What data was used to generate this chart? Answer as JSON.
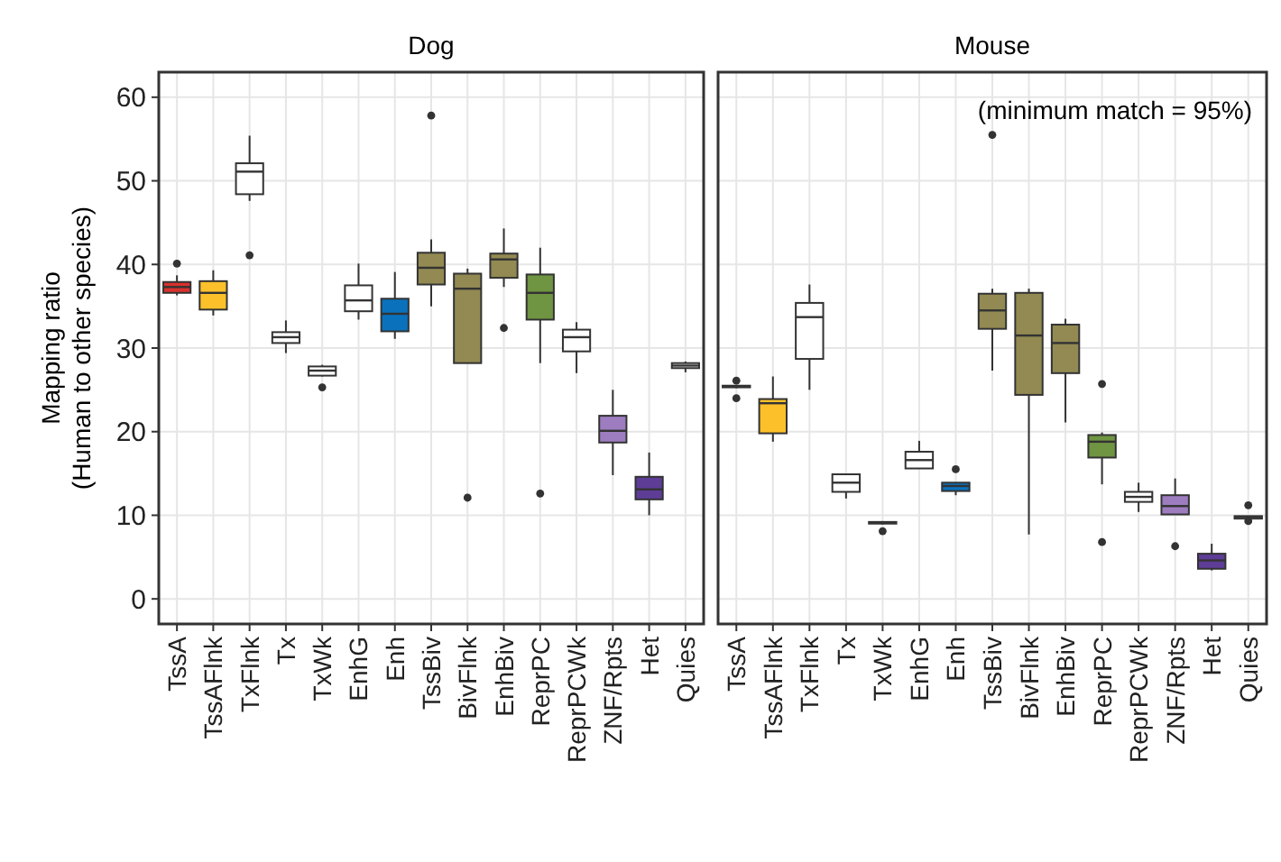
{
  "chart_data": [
    {
      "type": "box",
      "title": "Dog",
      "ylabel": "Mapping ratio\n(Human to other species)",
      "categories": [
        "TssA",
        "TssAFlnk",
        "TxFlnk",
        "Tx",
        "TxWk",
        "EnhG",
        "Enh",
        "TssBiv",
        "BivFlnk",
        "EnhBiv",
        "ReprPC",
        "ReprPCWk",
        "ZNF/Rpts",
        "Het",
        "Quies"
      ],
      "colors": [
        "#d7312d",
        "#fcc12a",
        "#ffffff",
        "#ffffff",
        "#ffffff",
        "#ffffff",
        "#0a72bd",
        "#928a52",
        "#928a52",
        "#928a52",
        "#6f9442",
        "#ffffff",
        "#9d7dbf",
        "#5e3d97",
        "#ffffff"
      ],
      "boxes": [
        {
          "low": 36.3,
          "q1": 36.6,
          "median": 37.3,
          "q3": 37.9,
          "high": 38.7,
          "outliers": [
            40.1
          ]
        },
        {
          "low": 33.9,
          "q1": 34.6,
          "median": 36.6,
          "q3": 38.0,
          "high": 39.3
        },
        {
          "low": 47.6,
          "q1": 48.4,
          "median": 51.1,
          "q3": 52.1,
          "high": 55.4,
          "outliers": [
            41.1
          ]
        },
        {
          "low": 29.4,
          "q1": 30.6,
          "median": 31.3,
          "q3": 31.9,
          "high": 33.3
        },
        {
          "low": 26.6,
          "q1": 26.7,
          "median": 27.3,
          "q3": 27.8,
          "high": 28.0,
          "outliers": [
            25.3
          ]
        },
        {
          "low": 33.4,
          "q1": 34.4,
          "median": 35.7,
          "q3": 37.5,
          "high": 40.1
        },
        {
          "low": 31.1,
          "q1": 32.0,
          "median": 34.1,
          "q3": 35.9,
          "high": 39.1
        },
        {
          "low": 35.0,
          "q1": 37.6,
          "median": 39.6,
          "q3": 41.4,
          "high": 43.0,
          "outliers": [
            57.8
          ]
        },
        {
          "low": 28.2,
          "q1": 28.2,
          "median": 37.1,
          "q3": 38.9,
          "high": 39.5,
          "outliers": [
            12.1
          ]
        },
        {
          "low": 37.3,
          "q1": 38.4,
          "median": 40.6,
          "q3": 41.3,
          "high": 44.3,
          "outliers": [
            32.4
          ]
        },
        {
          "low": 28.2,
          "q1": 33.4,
          "median": 36.6,
          "q3": 38.8,
          "high": 42.0,
          "outliers": [
            12.6
          ]
        },
        {
          "low": 27.0,
          "q1": 29.6,
          "median": 31.3,
          "q3": 32.2,
          "high": 33.1
        },
        {
          "low": 14.8,
          "q1": 18.7,
          "median": 20.1,
          "q3": 21.9,
          "high": 25.0
        },
        {
          "low": 10.0,
          "q1": 11.9,
          "median": 13.1,
          "q3": 14.6,
          "high": 17.5
        },
        {
          "low": 27.1,
          "q1": 27.6,
          "median": 27.9,
          "q3": 28.2,
          "high": 28.4
        }
      ],
      "ylim": [
        -3,
        63
      ],
      "yticks": [
        0,
        10,
        20,
        30,
        40,
        50,
        60
      ],
      "grid": true
    },
    {
      "type": "box",
      "title": "Mouse",
      "annotations": [
        "(minimum match = 95%)"
      ],
      "categories": [
        "TssA",
        "TssAFlnk",
        "TxFlnk",
        "Tx",
        "TxWk",
        "EnhG",
        "Enh",
        "TssBiv",
        "BivFlnk",
        "EnhBiv",
        "ReprPC",
        "ReprPCWk",
        "ZNF/Rpts",
        "Het",
        "Quies"
      ],
      "colors": [
        "#d7312d",
        "#fcc12a",
        "#ffffff",
        "#ffffff",
        "#ffffff",
        "#ffffff",
        "#0a72bd",
        "#928a52",
        "#928a52",
        "#928a52",
        "#6f9442",
        "#ffffff",
        "#9d7dbf",
        "#5e3d97",
        "#ffffff"
      ],
      "boxes": [
        {
          "low": 25.2,
          "q1": 25.3,
          "median": 25.4,
          "q3": 25.5,
          "high": 25.6,
          "outliers": [
            26.1,
            24.0
          ]
        },
        {
          "low": 18.8,
          "q1": 19.8,
          "median": 23.4,
          "q3": 23.9,
          "high": 26.6
        },
        {
          "low": 25.0,
          "q1": 28.7,
          "median": 33.7,
          "q3": 35.4,
          "high": 37.6
        },
        {
          "low": 12.0,
          "q1": 12.8,
          "median": 13.9,
          "q3": 14.9,
          "high": 14.9
        },
        {
          "low": 8.9,
          "q1": 9.0,
          "median": 9.1,
          "q3": 9.2,
          "high": 9.3,
          "outliers": [
            8.1
          ]
        },
        {
          "low": 15.6,
          "q1": 15.6,
          "median": 16.6,
          "q3": 17.6,
          "high": 18.9
        },
        {
          "low": 12.4,
          "q1": 12.9,
          "median": 13.5,
          "q3": 13.9,
          "high": 13.9,
          "outliers": [
            15.5
          ]
        },
        {
          "low": 27.3,
          "q1": 32.3,
          "median": 34.5,
          "q3": 36.5,
          "high": 37.1,
          "outliers": [
            55.5
          ]
        },
        {
          "low": 7.7,
          "q1": 24.4,
          "median": 31.5,
          "q3": 36.6,
          "high": 37.1
        },
        {
          "low": 21.1,
          "q1": 27.0,
          "median": 30.6,
          "q3": 32.8,
          "high": 33.5
        },
        {
          "low": 13.7,
          "q1": 16.9,
          "median": 18.8,
          "q3": 19.6,
          "high": 19.9,
          "outliers": [
            25.7,
            6.8
          ]
        },
        {
          "low": 10.4,
          "q1": 11.6,
          "median": 12.2,
          "q3": 12.8,
          "high": 13.9
        },
        {
          "low": 10.1,
          "q1": 10.1,
          "median": 11.1,
          "q3": 12.4,
          "high": 14.4,
          "outliers": [
            6.3
          ]
        },
        {
          "low": 3.4,
          "q1": 3.6,
          "median": 4.6,
          "q3": 5.4,
          "high": 6.6
        },
        {
          "low": 9.6,
          "q1": 9.6,
          "median": 9.8,
          "q3": 9.9,
          "high": 9.9,
          "outliers": [
            11.2,
            9.3
          ]
        }
      ],
      "ylim": [
        -3,
        63
      ],
      "yticks": [
        0,
        10,
        20,
        30,
        40,
        50,
        60
      ],
      "grid": true,
      "tick_labels": "x"
    }
  ]
}
